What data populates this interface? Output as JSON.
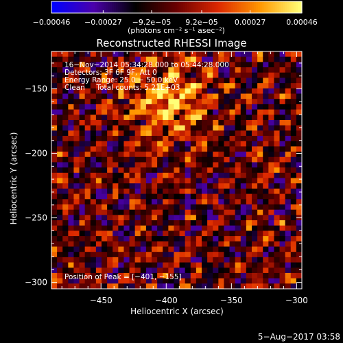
{
  "chart_data": {
    "type": "heatmap",
    "title": "Reconstructed RHESSI Image",
    "xlabel": "Heliocentric X (arcsec)",
    "ylabel": "Heliocentric Y (arcsec)",
    "xlim": [
      -488,
      -296
    ],
    "ylim": [
      -305,
      -121
    ],
    "x_ticks": [
      -450,
      -400,
      -350,
      -300
    ],
    "x_tick_labels": [
      "−450",
      "−400",
      "−350",
      "−300"
    ],
    "y_ticks": [
      -150,
      -200,
      -250,
      -300
    ],
    "y_tick_labels": [
      "−150",
      "−200",
      "−250",
      "−300"
    ],
    "colorbar": {
      "tick_values": [
        -0.00046,
        -0.00027,
        -9.2e-05,
        9.2e-05,
        0.00027,
        0.00046
      ],
      "tick_labels": [
        "−0.00046",
        "−0.00027",
        "−9.2e−05",
        "9.2e−05",
        "0.00027",
        "0.00046"
      ],
      "units": "(photons cm⁻² s⁻¹ asec⁻²)",
      "range": [
        -0.00046,
        0.00046
      ],
      "colormap": [
        "#0000ff",
        "#4b00aa",
        "#000000",
        "#6a0000",
        "#dc2800",
        "#ff9600",
        "#ffff78"
      ]
    },
    "annotations": [
      "16−Nov−2014 05:34:28.000 to 05:44:28.000",
      "Detectors: 3F 6F 9F, Att 0",
      "Energy Range: 25.0 − 50.0 keV",
      "Clean     Total counts: 5.21E+03"
    ],
    "peak_label": "Position of Peak = [−401, −155]",
    "peak_position": [
      -401,
      -155
    ],
    "grid_cells": 45,
    "grid": false
  },
  "footer": {
    "timestamp": "5−Aug−2017 03:58"
  }
}
